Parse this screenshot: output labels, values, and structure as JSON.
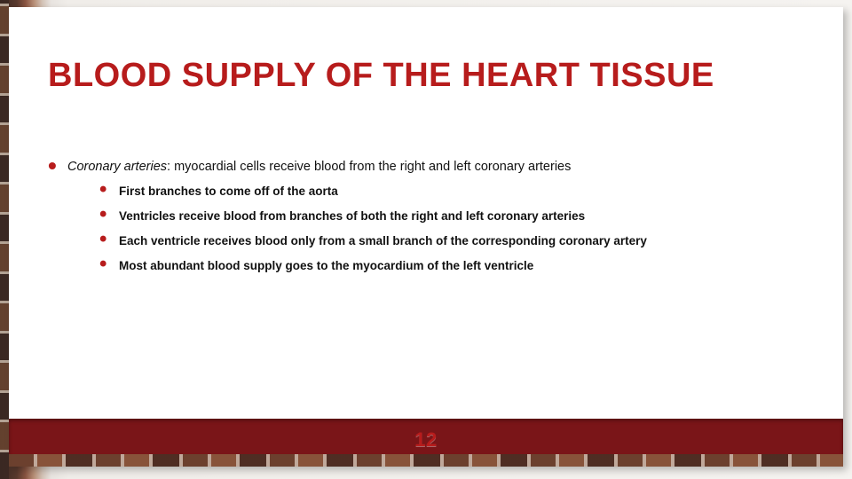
{
  "colors": {
    "accent": "#b71c1c",
    "footer_band": "#7a1518",
    "text": "#111111",
    "slide_bg": "#ffffff"
  },
  "typography": {
    "title_font": "Impact / Arial Black (condensed)",
    "title_size_pt": 29,
    "title_weight": 900,
    "body_font": "Arial",
    "body_size_pt": 11,
    "subitem_size_pt": 10,
    "subitem_weight": 600
  },
  "slide": {
    "title": "BLOOD SUPPLY OF THE HEART TISSUE",
    "main_item": {
      "label": "Coronary arteries",
      "separator": ": ",
      "text": "myocardial cells receive blood from the right and left coronary arteries"
    },
    "subitems": [
      "First branches to come off of the aorta",
      "Ventricles receive blood from branches of both the right and left coronary arteries",
      "Each ventricle receives blood only from a small branch of the corresponding coronary artery",
      "Most abundant blood supply goes to the myocardium of the left ventricle"
    ],
    "page_number": "12"
  }
}
